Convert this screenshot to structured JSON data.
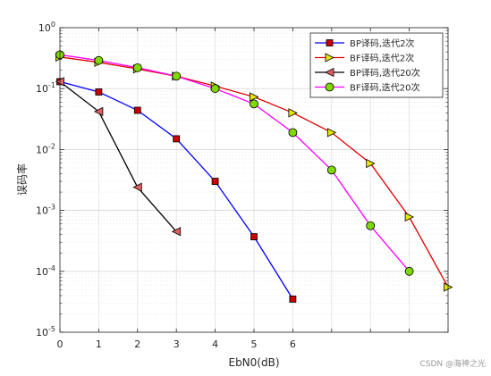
{
  "chart_data": {
    "type": "line",
    "xlabel": "EbN0(dB)",
    "ylabel": "误码率",
    "xlim": [
      0,
      10
    ],
    "ylim": [
      1e-05,
      1
    ],
    "yscale": "log",
    "grid": true,
    "minor_grid": true,
    "legend_position": "top-right",
    "x_tick_labels": [
      "0",
      "1",
      "2",
      "3",
      "4",
      "5",
      "6"
    ],
    "y_tick_labels": [
      {
        "base": "10",
        "exp": "0"
      },
      {
        "base": "10",
        "exp": "-1"
      },
      {
        "base": "10",
        "exp": "-2"
      },
      {
        "base": "10",
        "exp": "-3"
      },
      {
        "base": "10",
        "exp": "-4"
      },
      {
        "base": "10",
        "exp": "-5"
      }
    ],
    "series": [
      {
        "name": "BP译码,迭代2次",
        "color": "#0000ff",
        "marker": "square",
        "marker_fill": "#cc0000",
        "x": [
          0,
          1,
          2,
          3,
          4,
          5,
          6
        ],
        "y": [
          0.13,
          0.088,
          0.044,
          0.015,
          0.003,
          0.00037,
          3.5e-05
        ]
      },
      {
        "name": "BF译码,迭代2次",
        "color": "#e00000",
        "marker": "triangle-right",
        "marker_fill": "#e6e600",
        "x": [
          0,
          1,
          2,
          3,
          4,
          5,
          6,
          7,
          8,
          9,
          10
        ],
        "y": [
          0.33,
          0.27,
          0.21,
          0.16,
          0.11,
          0.073,
          0.04,
          0.019,
          0.0059,
          0.00078,
          5.5e-05
        ]
      },
      {
        "name": "BP译码,迭代20次",
        "color": "#000000",
        "marker": "triangle-left",
        "marker_fill": "#e06060",
        "x": [
          0,
          1,
          2,
          3
        ],
        "y": [
          0.13,
          0.042,
          0.0024,
          0.00045
        ]
      },
      {
        "name": "BF译码,迭代20次",
        "color": "#ff00ff",
        "marker": "circle",
        "marker_fill": "#7fd900",
        "x": [
          0,
          1,
          2,
          3,
          4,
          5,
          6,
          7,
          8,
          9
        ],
        "y": [
          0.36,
          0.29,
          0.22,
          0.16,
          0.1,
          0.056,
          0.019,
          0.0046,
          0.00056,
          0.0001
        ]
      }
    ]
  },
  "watermark": "CSDN @海神之光"
}
